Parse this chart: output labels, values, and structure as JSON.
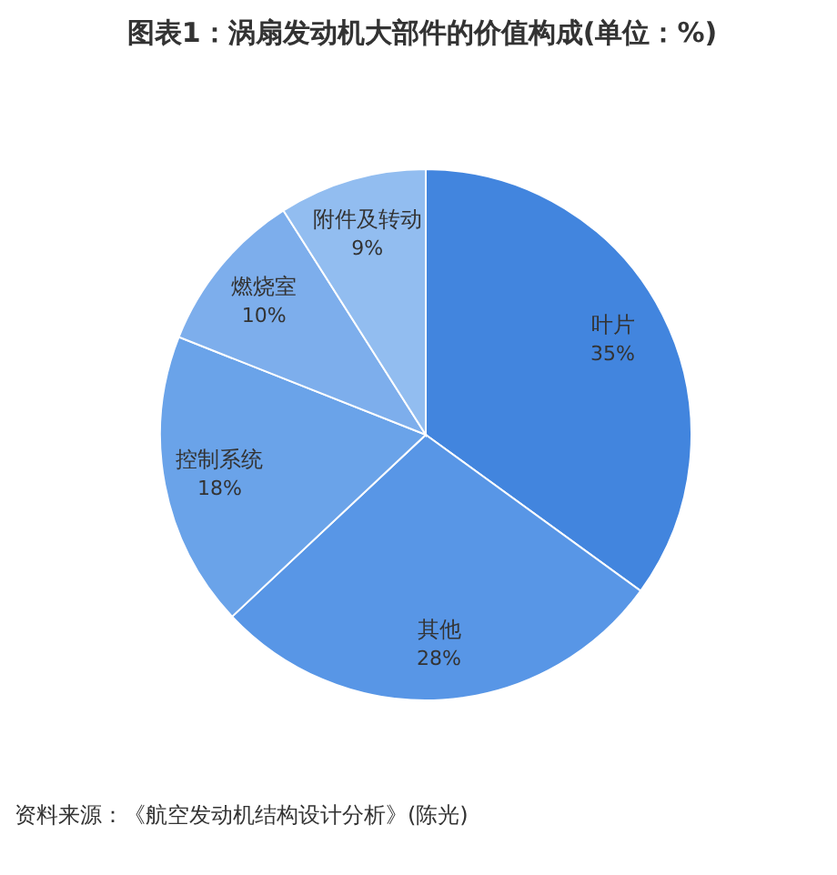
{
  "chart_data": {
    "type": "pie",
    "title": "图表1：涡扇发动机大部件的价值构成(单位：%)",
    "categories": [
      "叶片",
      "其他",
      "控制系统",
      "燃烧室",
      "附件及转动"
    ],
    "values": [
      35,
      28,
      18,
      10,
      9
    ],
    "value_labels": [
      "35%",
      "28%",
      "18%",
      "10%",
      "9%"
    ],
    "colors": [
      "#4285de",
      "#5896e6",
      "#6aa3e9",
      "#7daeec",
      "#92bdf0"
    ],
    "legend": false,
    "annotations": [
      "资料来源：《航空发动机结构设计分析》(陈光)"
    ]
  }
}
